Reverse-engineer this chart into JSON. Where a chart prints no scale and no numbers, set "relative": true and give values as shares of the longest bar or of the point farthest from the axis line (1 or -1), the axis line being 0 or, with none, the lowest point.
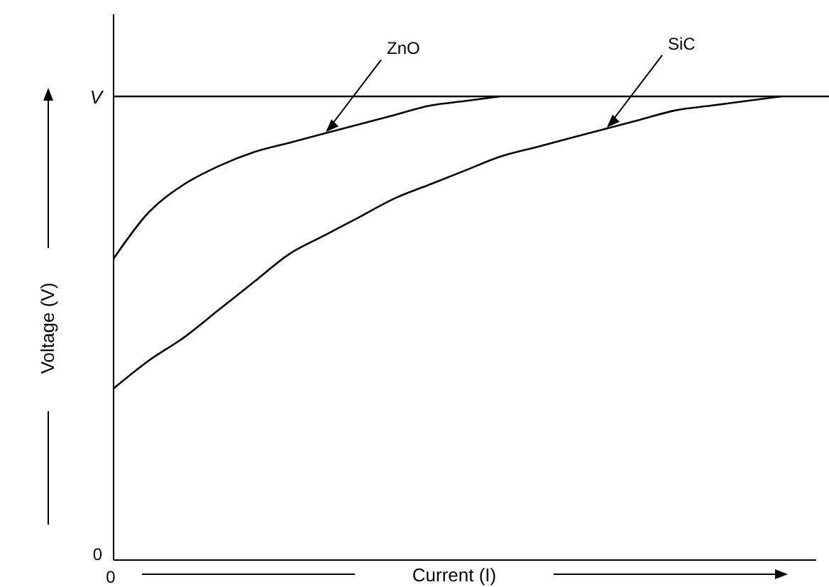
{
  "chart_data": {
    "type": "line",
    "relative": true,
    "xlabel": "Current (I)",
    "ylabel": "Voltage (V)",
    "categories": [
      null,
      null,
      null,
      null,
      null,
      null,
      null,
      null,
      null,
      null,
      null,
      null,
      null,
      null,
      null,
      null,
      null,
      null,
      null,
      null,
      null
    ],
    "series": [
      {
        "name": "ZnO",
        "color": "#000000",
        "values": [
          0.65,
          0.75,
          0.81,
          0.85,
          0.88,
          0.9,
          0.92,
          0.94,
          0.96,
          0.98,
          0.99,
          1.0,
          null,
          null,
          null,
          null,
          null,
          null,
          null,
          null,
          null
        ]
      },
      {
        "name": "SiC",
        "color": "#000000",
        "values": [
          0.37,
          0.43,
          0.48,
          0.54,
          0.6,
          0.66,
          0.7,
          0.74,
          0.78,
          0.81,
          0.84,
          0.87,
          0.89,
          0.91,
          0.93,
          0.95,
          0.97,
          0.98,
          0.99,
          1.0,
          null
        ]
      }
    ],
    "ref_lines": [
      {
        "axis": "y",
        "value": 1,
        "label": "V",
        "color": "#000000"
      }
    ],
    "annotations": [
      "0",
      "0"
    ],
    "line_style": "solid"
  }
}
